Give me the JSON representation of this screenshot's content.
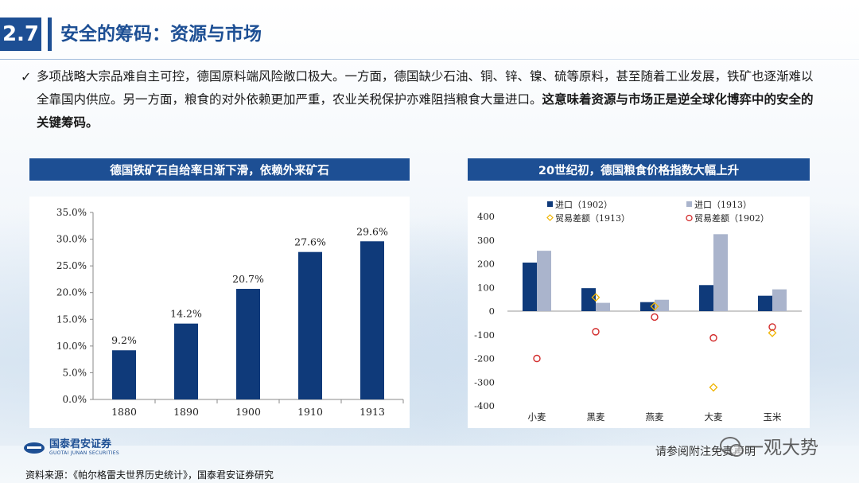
{
  "header": {
    "section_number": "2.7",
    "title": "安全的筹码：资源与市场"
  },
  "bullet": {
    "check": "✓",
    "text_normal": "多项战略大宗品难自主可控，德国原料端风险敞口极大。一方面，德国缺少石油、铜、锌、镍、硫等原料，甚至随着工业发展，铁矿也逐渐难以全靠国内供应。另一方面，粮食的对外依赖更加严重，农业关税保护亦难阻挡粮食大量进口。",
    "text_bold": "这意味着资源与市场正是逆全球化博弈中的安全的关键筹码。"
  },
  "left_panel": {
    "title": "德国铁矿石自给率日渐下滑，依赖外来矿石"
  },
  "right_panel": {
    "title": "20世纪初，德国粮食价格指数大幅上升"
  },
  "colors": {
    "navy": "#1d4f94",
    "bar_dark": "#0f3a7a",
    "bar_light": "#aab4cc",
    "diamond": "#f0b400",
    "circle": "#d22a2a"
  },
  "chart_data": [
    {
      "type": "bar",
      "categories": [
        "1880",
        "1890",
        "1900",
        "1910",
        "1913"
      ],
      "values": [
        9.2,
        14.2,
        20.7,
        27.6,
        29.6
      ],
      "data_labels": [
        "9.2%",
        "14.2%",
        "20.7%",
        "27.6%",
        "29.6%"
      ],
      "y_ticks": [
        "0.0%",
        "5.0%",
        "10.0%",
        "15.0%",
        "20.0%",
        "25.0%",
        "30.0%",
        "35.0%"
      ],
      "ylim": [
        0,
        35
      ],
      "grid": false
    },
    {
      "type": "bar",
      "categories": [
        "小麦",
        "黑麦",
        "燕麦",
        "大麦",
        "玉米"
      ],
      "series": [
        {
          "name": "进口（1902）",
          "kind": "bar",
          "values": [
            205,
            97,
            38,
            110,
            65
          ]
        },
        {
          "name": "进口（1913）",
          "kind": "bar",
          "values": [
            255,
            35,
            48,
            325,
            92
          ]
        },
        {
          "name": "贸易差额（1913）",
          "kind": "diamond",
          "values": [
            null,
            58,
            20,
            -322,
            -92
          ]
        },
        {
          "name": "贸易差额（1902）",
          "kind": "circle",
          "values": [
            -200,
            -87,
            -25,
            -113,
            -67
          ]
        }
      ],
      "y_ticks": [
        "-400",
        "-300",
        "-200",
        "-100",
        "0",
        "100",
        "200",
        "300",
        "400"
      ],
      "ylim": [
        -400,
        400
      ],
      "legend": "top",
      "grid": false
    }
  ],
  "footer": {
    "source": "资料来源：《帕尔格雷夫世界历史统计》，国泰君安证券研究",
    "logo_cn": "国泰君安证券",
    "logo_en": "GUOTAI JUNAN SECURITIES",
    "disclaimer": "请参阅附注免责声明",
    "watermark": "一观大势"
  }
}
